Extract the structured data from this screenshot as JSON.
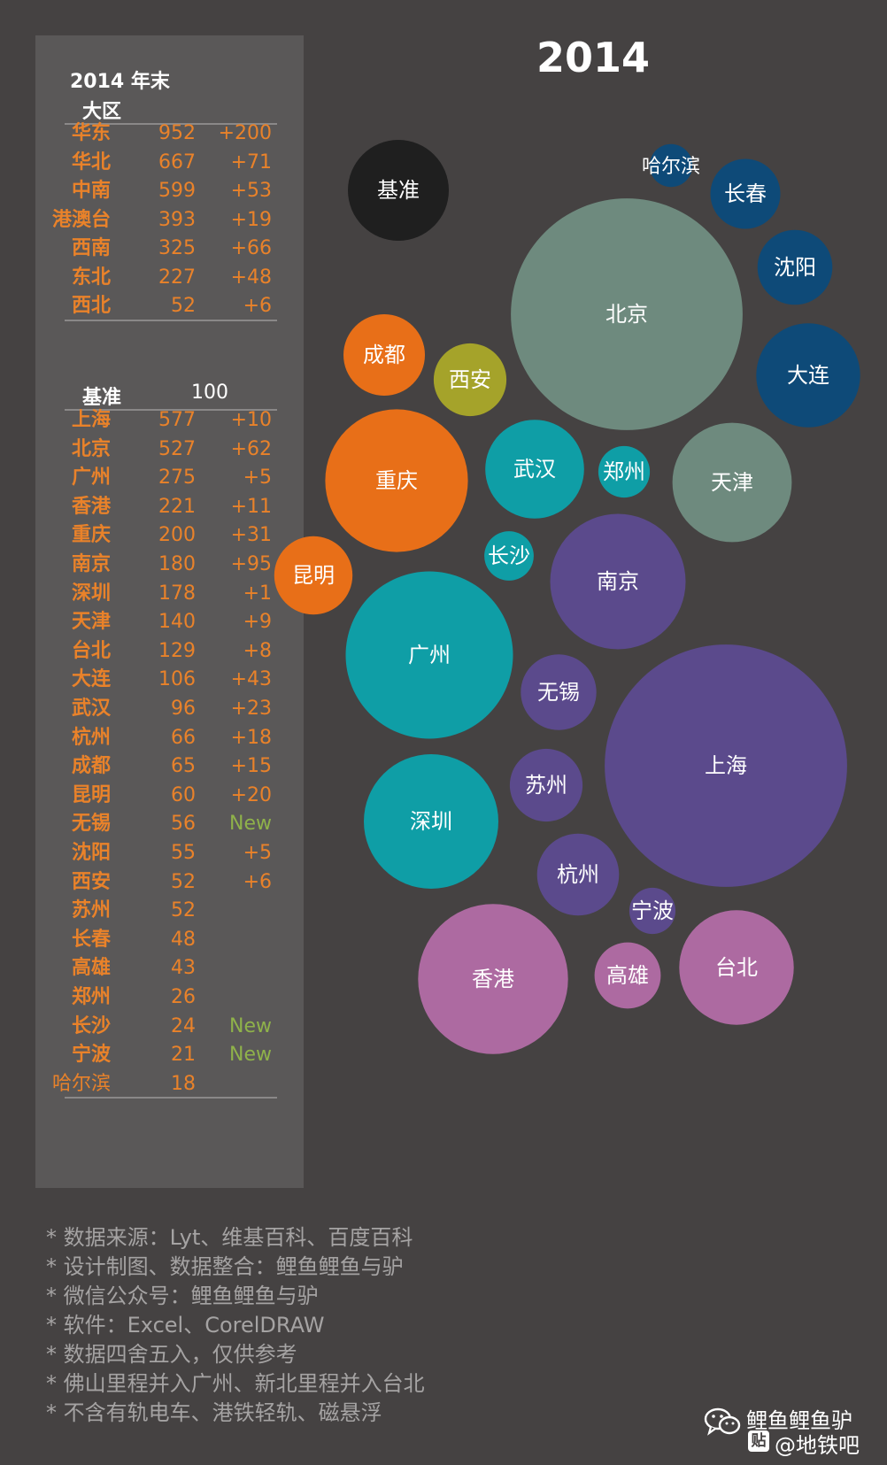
{
  "chart_data": {
    "type": "bubble",
    "title": "2014",
    "panel_title": "2014 年末",
    "region_header": "大区",
    "regions": [
      {
        "name": "华东",
        "value": 952,
        "change": "+200"
      },
      {
        "name": "华北",
        "value": 667,
        "change": "+71"
      },
      {
        "name": "中南",
        "value": 599,
        "change": "+53"
      },
      {
        "name": "港澳台",
        "value": 393,
        "change": "+19"
      },
      {
        "name": "西南",
        "value": 325,
        "change": "+66"
      },
      {
        "name": "东北",
        "value": 227,
        "change": "+48"
      },
      {
        "name": "西北",
        "value": 52,
        "change": "+6"
      }
    ],
    "baseline": {
      "name": "基准",
      "value": 100
    },
    "cities": [
      {
        "name": "上海",
        "value": 577,
        "change": "+10",
        "group": "华东"
      },
      {
        "name": "北京",
        "value": 527,
        "change": "+62",
        "group": "华北"
      },
      {
        "name": "广州",
        "value": 275,
        "change": "+5",
        "group": "中南"
      },
      {
        "name": "香港",
        "value": 221,
        "change": "+11",
        "group": "港澳台"
      },
      {
        "name": "重庆",
        "value": 200,
        "change": "+31",
        "group": "西南"
      },
      {
        "name": "南京",
        "value": 180,
        "change": "+95",
        "group": "华东"
      },
      {
        "name": "深圳",
        "value": 178,
        "change": "+1",
        "group": "中南"
      },
      {
        "name": "天津",
        "value": 140,
        "change": "+9",
        "group": "华北"
      },
      {
        "name": "台北",
        "value": 129,
        "change": "+8",
        "group": "港澳台"
      },
      {
        "name": "大连",
        "value": 106,
        "change": "+43",
        "group": "东北"
      },
      {
        "name": "武汉",
        "value": 96,
        "change": "+23",
        "group": "中南"
      },
      {
        "name": "杭州",
        "value": 66,
        "change": "+18",
        "group": "华东"
      },
      {
        "name": "成都",
        "value": 65,
        "change": "+15",
        "group": "西南"
      },
      {
        "name": "昆明",
        "value": 60,
        "change": "+20",
        "group": "西南"
      },
      {
        "name": "无锡",
        "value": 56,
        "change": "New",
        "group": "华东"
      },
      {
        "name": "沈阳",
        "value": 55,
        "change": "+5",
        "group": "东北"
      },
      {
        "name": "西安",
        "value": 52,
        "change": "+6",
        "group": "西北"
      },
      {
        "name": "苏州",
        "value": 52,
        "change": "",
        "group": "华东"
      },
      {
        "name": "长春",
        "value": 48,
        "change": "",
        "group": "东北"
      },
      {
        "name": "高雄",
        "value": 43,
        "change": "",
        "group": "港澳台"
      },
      {
        "name": "郑州",
        "value": 26,
        "change": "",
        "group": "中南"
      },
      {
        "name": "长沙",
        "value": 24,
        "change": "New",
        "group": "中南"
      },
      {
        "name": "宁波",
        "value": 21,
        "change": "New",
        "group": "华东"
      },
      {
        "name": "哈尔滨",
        "value": 18,
        "change": "",
        "group": "东北"
      }
    ],
    "group_colors": {
      "华东": "#5b4a8c",
      "华北": "#6e8a7e",
      "中南": "#0f9ea6",
      "港澳台": "#ad6aa1",
      "西南": "#e86f18",
      "东北": "#0e4a78",
      "西北": "#a5a32a",
      "基准": "#1f1f1f"
    },
    "new_color": "#8fb24a"
  },
  "notes": [
    "* 数据来源：Lyt、维基百科、百度百科",
    "* 设计制图、数据整合：鲤鱼鲤鱼与驴",
    "* 微信公众号：鲤鱼鲤鱼与驴",
    "* 软件：Excel、CorelDRAW",
    "* 数据四舍五入，仅供参考",
    "* 佛山里程并入广州、新北里程并入台北",
    "* 不含有轨电车、港铁轻轨、磁悬浮"
  ],
  "watermark": {
    "line1": "鲤鱼鲤鱼驴",
    "line2": "@地铁吧",
    "tieba_glyph": "贴",
    "icons": [
      "wechat-icon",
      "tieba-icon"
    ]
  }
}
